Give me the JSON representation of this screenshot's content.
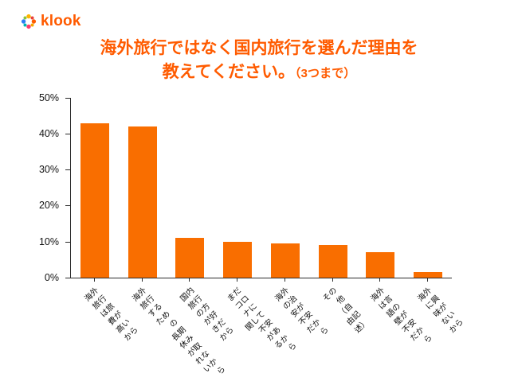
{
  "brand": {
    "logo_text": "klook",
    "accent": "#FF5B00",
    "logo_petal_colors": [
      "#FF5B00",
      "#F7A600",
      "#FF3B6B",
      "#00B5B0",
      "#2E7CF6",
      "#8BC53F",
      "#FFB300",
      "#E8413A"
    ]
  },
  "title": {
    "line1": "海外旅行ではなく国内旅行を選んだ理由を",
    "line2": "教えてください。",
    "line2_suffix": "（3つまで）"
  },
  "chart_data": {
    "type": "bar",
    "title": "海外旅行ではなく国内旅行を選んだ理由を教えてください。（3つまで）",
    "categories": [
      "海外旅行は旅費が\n高いから",
      "海外旅行するための\n長期休みが取れないから",
      "国内旅行の方が好きだから",
      "まだコロナに関して\n不安があるから",
      "海外の治安が不安だから",
      "その他（自由記述）",
      "海外は言語の壁が\n不安だから",
      "海外に興味がないから"
    ],
    "values": [
      43,
      42,
      11,
      10,
      9.5,
      9,
      7,
      1.5
    ],
    "xlabel": "",
    "ylabel": "",
    "ylim": [
      0,
      50
    ],
    "yticks": [
      "0%",
      "10%",
      "20%",
      "30%",
      "40%",
      "50%"
    ],
    "grid": false,
    "legend": false,
    "bar_color": "#F96E00"
  }
}
